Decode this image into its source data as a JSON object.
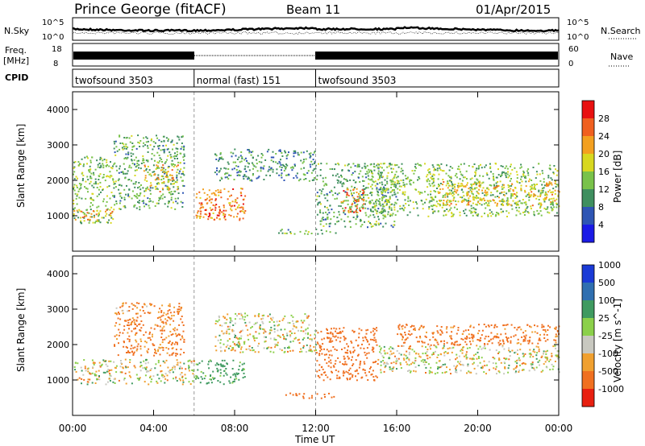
{
  "header": {
    "station": "Prince George (fitACF)",
    "beam": "Beam 11",
    "date": "01/Apr/2015"
  },
  "nsky_panel": {
    "left_label": "N.Sky",
    "right_label": "N.Search",
    "tick_top": "10^5",
    "tick_bottom": "10^0"
  },
  "freq_panel": {
    "left_label_line1": "Freq.",
    "left_label_line2": "[MHz]",
    "tick_top": "18",
    "tick_bottom": "8",
    "right_label": "Nave",
    "right_tick_top": "60",
    "right_tick_bottom": "0"
  },
  "cpid_panel": {
    "label": "CPID",
    "programs": [
      {
        "name": "twofsound 3503",
        "start_h": 0,
        "end_h": 6
      },
      {
        "name": "normal (fast) 151",
        "start_h": 6,
        "end_h": 12
      },
      {
        "name": "twofsound 3503",
        "start_h": 12,
        "end_h": 24
      }
    ]
  },
  "x_axis": {
    "title": "Time UT",
    "ticks": [
      "00:00",
      "04:00",
      "08:00",
      "12:00",
      "16:00",
      "20:00",
      "00:00"
    ]
  },
  "power_panel": {
    "ylabel": "Slant Range [km]",
    "yticks": [
      "1000",
      "2000",
      "3000",
      "4000"
    ],
    "colorbar_label": "Power [dB]",
    "colorbar_ticks": [
      "4",
      "8",
      "12",
      "16",
      "20",
      "24",
      "28"
    ],
    "colors": [
      "#1a1ae6",
      "#2e55b4",
      "#3f8f5f",
      "#79c24a",
      "#d8d820",
      "#f3a020",
      "#f06020",
      "#e81010"
    ]
  },
  "velocity_panel": {
    "ylabel": "Slant Range [km]",
    "yticks": [
      "1000",
      "2000",
      "3000",
      "4000"
    ],
    "colorbar_label": "Velocity [m s^-1]",
    "colorbar_ticks": [
      "1000",
      "500",
      "100",
      "25",
      "-25",
      "-100",
      "-500",
      "-1000"
    ],
    "colors": [
      "#1a3ad6",
      "#2f6fb0",
      "#3f9a60",
      "#8bd04a",
      "#c8c8c0",
      "#f0a030",
      "#f07020",
      "#e82010"
    ]
  },
  "chart_data": {
    "type": "heatmap",
    "x_range_hours": [
      0,
      24
    ],
    "y_range_km": [
      0,
      4500
    ],
    "panels": [
      "Power [dB]",
      "Velocity [m s^-1]"
    ],
    "power_regions": [
      {
        "t0": 0.0,
        "t1": 2.0,
        "r0": 800,
        "r1": 2700,
        "power_db": 14
      },
      {
        "t0": 0.0,
        "t1": 2.0,
        "r0": 900,
        "r1": 1200,
        "power_db": 22
      },
      {
        "t0": 2.0,
        "t1": 5.5,
        "r0": 1200,
        "r1": 3300,
        "power_db": 12
      },
      {
        "t0": 3.5,
        "t1": 5.2,
        "r0": 1700,
        "r1": 2500,
        "power_db": 20
      },
      {
        "t0": 6.0,
        "t1": 8.5,
        "r0": 900,
        "r1": 1800,
        "power_db": 24
      },
      {
        "t0": 6.5,
        "t1": 7.5,
        "r0": 900,
        "r1": 1400,
        "power_db": 28
      },
      {
        "t0": 7.0,
        "t1": 12.0,
        "r0": 2000,
        "r1": 2900,
        "power_db": 10
      },
      {
        "t0": 12.0,
        "t1": 16.0,
        "r0": 700,
        "r1": 2500,
        "power_db": 12
      },
      {
        "t0": 13.2,
        "t1": 14.4,
        "r0": 1100,
        "r1": 1800,
        "power_db": 24
      },
      {
        "t0": 14.5,
        "t1": 24.0,
        "r0": 1000,
        "r1": 2500,
        "power_db": 14
      },
      {
        "t0": 18.0,
        "t1": 24.0,
        "r0": 1300,
        "r1": 2000,
        "power_db": 20
      },
      {
        "t0": 10.0,
        "t1": 13.0,
        "r0": 500,
        "r1": 650,
        "power_db": 12
      }
    ],
    "velocity_regions": [
      {
        "t0": 0.0,
        "t1": 6.0,
        "r0": 900,
        "r1": 1600,
        "velocity": 0
      },
      {
        "t0": 2.0,
        "t1": 5.5,
        "r0": 1700,
        "r1": 3200,
        "velocity": -150
      },
      {
        "t0": 6.0,
        "t1": 8.5,
        "r0": 900,
        "r1": 1600,
        "velocity": 200
      },
      {
        "t0": 7.0,
        "t1": 12.0,
        "r0": 1800,
        "r1": 2900,
        "velocity": 0
      },
      {
        "t0": 12.0,
        "t1": 15.0,
        "r0": 1000,
        "r1": 2500,
        "velocity": -250
      },
      {
        "t0": 15.0,
        "t1": 24.0,
        "r0": 1200,
        "r1": 2000,
        "velocity": 0
      },
      {
        "t0": 16.0,
        "t1": 24.0,
        "r0": 2000,
        "r1": 2600,
        "velocity": -200
      },
      {
        "t0": 10.5,
        "t1": 13.0,
        "r0": 500,
        "r1": 650,
        "velocity": -300
      }
    ]
  }
}
